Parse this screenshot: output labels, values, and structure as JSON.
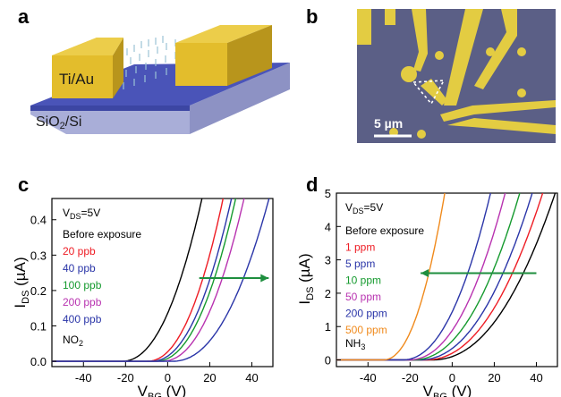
{
  "panels": {
    "a": {
      "label": "a",
      "layer_top": "Ti/Au",
      "layer_bottom": "SiO2/Si",
      "colors": {
        "electrode": "#e6c33a",
        "oxide": "#4a54b8",
        "substrate": "#a9aed8"
      }
    },
    "b": {
      "label": "b",
      "scale_text": "5 µm",
      "colors": {
        "background": "#5b5f86",
        "metal": "#e3cc42"
      }
    }
  },
  "chart_data": [
    {
      "id": "c",
      "label": "c",
      "type": "line",
      "xlabel": "V_BG (V)",
      "ylabel": "I_DS (µA)",
      "xlim": [
        -55,
        50
      ],
      "ylim": [
        -0.015,
        0.46
      ],
      "xticks": [
        -40,
        -20,
        0,
        20,
        40
      ],
      "yticks": [
        0.0,
        0.1,
        0.2,
        0.3,
        0.4
      ],
      "ytick_labels": [
        "0.0",
        "0.1",
        "0.2",
        "0.3",
        "0.4"
      ],
      "condition": "V_DS=5V",
      "gas": "NO2",
      "arrow": {
        "direction": "right",
        "y": 0.235,
        "x_from": 15,
        "x_to": 48,
        "color": "#1e8e3e"
      },
      "series": [
        {
          "name": "Before exposure",
          "color": "#000000",
          "onset": -22,
          "x_at_top": 17
        },
        {
          "name": "20 ppb",
          "color": "#ee1c24",
          "onset": -10,
          "x_at_top": 27
        },
        {
          "name": "40 ppb",
          "color": "#2a35a8",
          "onset": -8,
          "x_at_top": 31
        },
        {
          "name": "100 ppb",
          "color": "#159a2e",
          "onset": -6,
          "x_at_top": 33
        },
        {
          "name": "200 ppb",
          "color": "#b832b0",
          "onset": -3,
          "x_at_top": 37
        },
        {
          "name": "400 ppb",
          "color": "#2a35a8",
          "onset": 2,
          "x_at_top": 49
        }
      ]
    },
    {
      "id": "d",
      "label": "d",
      "type": "line",
      "xlabel": "V_BG (V)",
      "ylabel": "I_DS (µA)",
      "xlim": [
        -55,
        50
      ],
      "ylim": [
        -0.2,
        5
      ],
      "xticks": [
        -40,
        -20,
        0,
        20,
        40
      ],
      "yticks": [
        0,
        1,
        2,
        3,
        4,
        5
      ],
      "ytick_labels": [
        "0",
        "1",
        "2",
        "3",
        "4",
        "5"
      ],
      "condition": "V_DS=5V",
      "gas": "NH3",
      "arrow": {
        "direction": "left",
        "y": 2.6,
        "x_from": 40,
        "x_to": -15,
        "color": "#1e8e3e"
      },
      "series": [
        {
          "name": "Before exposure",
          "color": "#000000",
          "onset": -10,
          "x_at_top": 50
        },
        {
          "name": "1 ppm",
          "color": "#ee1c24",
          "onset": -13,
          "x_at_top": 44
        },
        {
          "name": "5 ppm",
          "color": "#2a35a8",
          "onset": -16,
          "x_at_top": 39
        },
        {
          "name": "10 ppm",
          "color": "#159a2e",
          "onset": -19,
          "x_at_top": 33
        },
        {
          "name": "50 ppm",
          "color": "#b832b0",
          "onset": -21,
          "x_at_top": 26
        },
        {
          "name": "200 ppm",
          "color": "#2a35a8",
          "onset": -24,
          "x_at_top": 19
        },
        {
          "name": "500 ppm",
          "color": "#f08a1c",
          "onset": -33,
          "x_at_top": -3
        }
      ]
    }
  ]
}
